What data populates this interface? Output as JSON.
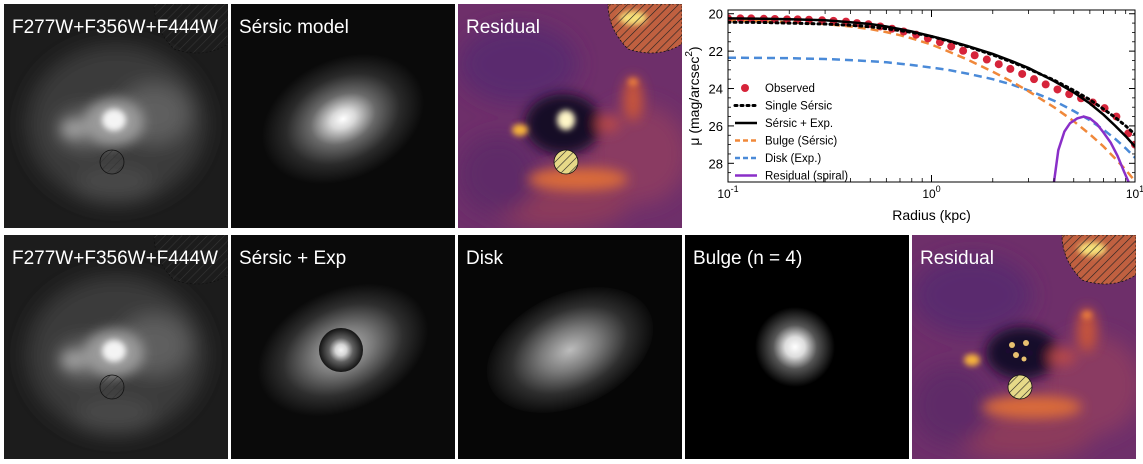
{
  "panels": {
    "top_image": "F277W+F356W+F444W",
    "sersic_model": "Sérsic model",
    "top_residual": "Residual",
    "bottom_image": "F277W+F356W+F444W",
    "sersic_exp": "Sérsic + Exp",
    "disk": "Disk",
    "bulge": "Bulge (n = 4)",
    "bottom_residual": "Residual"
  },
  "colors": {
    "observed": "#d6243a",
    "single_sersic": "#000000",
    "sersic_exp": "#000000",
    "bulge": "#f0883a",
    "disk": "#4a8ad8",
    "residual_spiral": "#8a2fc8"
  },
  "chart_data": {
    "type": "line",
    "xlabel": "Radius (kpc)",
    "ylabel_main": "μ (mag/arcsec",
    "ylabel_sup": "2",
    "ylabel_close": ")",
    "xscale": "log",
    "xlim": [
      0.1,
      10
    ],
    "ylim": [
      29,
      19.8
    ],
    "x_ticks": [
      {
        "base": "10",
        "exp": "-1",
        "value": 0.1
      },
      {
        "base": "10",
        "exp": "0",
        "value": 1
      },
      {
        "base": "10",
        "exp": "1",
        "value": 10
      }
    ],
    "y_ticks": [
      "20",
      "22",
      "24",
      "26",
      "28"
    ],
    "y_tick_values": [
      20,
      22,
      24,
      26,
      28
    ],
    "legend_position": "center-left",
    "series": [
      {
        "name": "Observed",
        "style": "markers",
        "x": [
          0.1,
          0.115,
          0.13,
          0.15,
          0.17,
          0.195,
          0.22,
          0.25,
          0.29,
          0.33,
          0.38,
          0.43,
          0.49,
          0.56,
          0.64,
          0.73,
          0.84,
          0.96,
          1.1,
          1.25,
          1.43,
          1.63,
          1.87,
          2.14,
          2.44,
          2.79,
          3.19,
          3.64,
          4.16,
          4.75,
          5.43,
          6.2,
          7.09,
          8.1,
          9.26,
          10.0
        ],
        "y": [
          20.25,
          20.25,
          20.25,
          20.27,
          20.28,
          20.3,
          20.3,
          20.32,
          20.35,
          20.38,
          20.42,
          20.5,
          20.56,
          20.68,
          20.8,
          20.95,
          21.12,
          21.32,
          21.52,
          21.75,
          21.98,
          22.22,
          22.45,
          22.7,
          22.95,
          23.22,
          23.5,
          23.78,
          24.05,
          24.3,
          24.52,
          24.75,
          25.05,
          25.5,
          26.4,
          27.0
        ]
      },
      {
        "name": "Single Sérsic",
        "style": "dotted",
        "x": [
          0.1,
          0.15,
          0.2,
          0.3,
          0.4,
          0.5,
          0.6,
          0.7,
          0.8,
          1.0,
          1.2,
          1.5,
          2.0,
          2.5,
          3.0,
          4.0,
          5.0,
          6.0,
          7.0,
          8.0,
          9.0,
          10.0
        ],
        "y": [
          20.45,
          20.47,
          20.5,
          20.55,
          20.62,
          20.7,
          20.8,
          20.9,
          21.0,
          21.22,
          21.45,
          21.75,
          22.2,
          22.6,
          22.95,
          23.55,
          24.1,
          24.6,
          25.1,
          25.55,
          26.0,
          26.45
        ]
      },
      {
        "name": "Sérsic + Exp.",
        "style": "solid",
        "x": [
          0.1,
          0.15,
          0.2,
          0.3,
          0.4,
          0.5,
          0.6,
          0.7,
          0.8,
          1.0,
          1.2,
          1.5,
          2.0,
          2.5,
          3.0,
          4.0,
          5.0,
          6.0,
          7.0,
          8.0,
          9.0,
          10.0
        ],
        "y": [
          20.25,
          20.27,
          20.3,
          20.35,
          20.45,
          20.55,
          20.68,
          20.82,
          20.95,
          21.2,
          21.42,
          21.72,
          22.15,
          22.55,
          22.9,
          23.6,
          24.2,
          24.8,
          25.4,
          26.0,
          26.55,
          27.1
        ]
      },
      {
        "name": "Bulge (Sérsic)",
        "style": "dashed",
        "x": [
          0.1,
          0.15,
          0.2,
          0.3,
          0.4,
          0.5,
          0.6,
          0.7,
          0.8,
          1.0,
          1.2,
          1.5,
          2.0,
          2.5,
          3.0,
          4.0,
          5.0,
          6.0,
          7.0,
          8.0,
          9.0,
          10.0
        ],
        "y": [
          20.35,
          20.4,
          20.45,
          20.55,
          20.68,
          20.82,
          20.98,
          21.15,
          21.32,
          21.65,
          22.0,
          22.45,
          23.1,
          23.65,
          24.15,
          25.0,
          25.75,
          26.45,
          27.1,
          27.75,
          28.35,
          28.95
        ]
      },
      {
        "name": "Disk (Exp.)",
        "style": "dashed",
        "x": [
          0.1,
          0.15,
          0.2,
          0.3,
          0.4,
          0.5,
          0.6,
          0.7,
          0.8,
          1.0,
          1.2,
          1.5,
          2.0,
          2.5,
          3.0,
          4.0,
          5.0,
          6.0,
          7.0,
          8.0,
          9.0,
          10.0
        ],
        "y": [
          22.35,
          22.36,
          22.38,
          22.42,
          22.48,
          22.54,
          22.6,
          22.67,
          22.74,
          22.88,
          23.0,
          23.2,
          23.5,
          23.8,
          24.1,
          24.65,
          25.2,
          25.7,
          26.2,
          26.7,
          27.2,
          27.7
        ]
      },
      {
        "name": "Residual (spiral)",
        "style": "solid",
        "x": [
          4.0,
          4.2,
          4.5,
          4.8,
          5.2,
          5.6,
          6.0,
          6.5,
          7.0,
          7.6,
          8.2,
          8.8,
          9.3
        ],
        "y": [
          29.0,
          27.3,
          26.3,
          25.85,
          25.6,
          25.5,
          25.6,
          25.9,
          26.35,
          26.9,
          27.6,
          28.4,
          29.0
        ]
      }
    ]
  }
}
